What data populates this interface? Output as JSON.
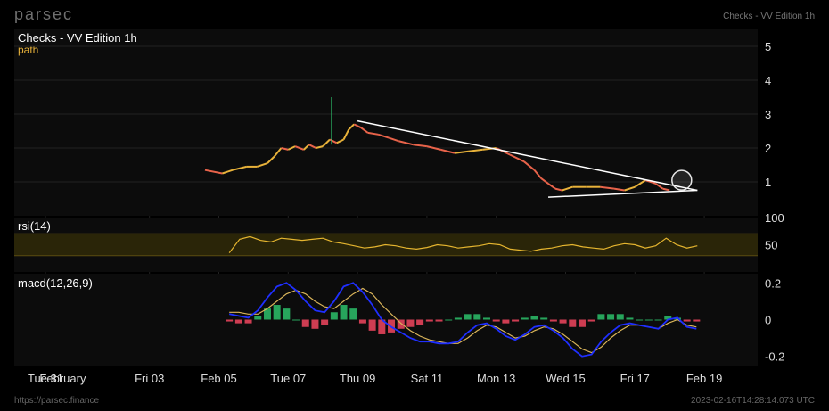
{
  "brand": "parsec",
  "header_right": "Checks - VV Edition 1h",
  "footer": {
    "url": "https://parsec.finance",
    "timestamp": "2023-02-16T14:28:14.073 UTC"
  },
  "colors": {
    "background": "#000000",
    "panel": "#0c0c0c",
    "grid": "#222222",
    "price_up": "#e8b23a",
    "price_down": "#e8634a",
    "wick_green": "#2ecc71",
    "rsi_line": "#e5b52f",
    "rsi_band": "#2a2508",
    "macd_line": "#1f2fff",
    "signal_line": "#d9b45a",
    "hist_pos": "#2ecc71",
    "hist_neg": "#ff4a64",
    "trendline": "#ffffff"
  },
  "chart_data": [
    {
      "type": "line",
      "title": "Checks - VV Edition 1h",
      "series_label": "path",
      "ylim": [
        0,
        5.5
      ],
      "yticks": [
        "5",
        "4",
        "3",
        "2",
        "1"
      ],
      "x_ticks": [
        "Tue 31",
        "February",
        "Fri 03",
        "Feb 05",
        "Tue 07",
        "Thu 09",
        "Sat 11",
        "Mon 13",
        "Wed 15",
        "Fri 17",
        "Feb 19"
      ],
      "x_tick_days": [
        0,
        0.5,
        3,
        5,
        7,
        9,
        11,
        13,
        15,
        17,
        19
      ],
      "price_points": [
        [
          4.6,
          1.35
        ],
        [
          5.1,
          1.25
        ],
        [
          5.4,
          1.35
        ],
        [
          5.8,
          1.45
        ],
        [
          6.1,
          1.45
        ],
        [
          6.4,
          1.55
        ],
        [
          6.6,
          1.75
        ],
        [
          6.8,
          2.0
        ],
        [
          7.0,
          1.95
        ],
        [
          7.2,
          2.05
        ],
        [
          7.45,
          1.95
        ],
        [
          7.6,
          2.1
        ],
        [
          7.8,
          2.0
        ],
        [
          8.0,
          2.05
        ],
        [
          8.2,
          2.25
        ],
        [
          8.4,
          2.15
        ],
        [
          8.6,
          2.25
        ],
        [
          8.75,
          2.55
        ],
        [
          8.9,
          2.7
        ],
        [
          9.1,
          2.6
        ],
        [
          9.3,
          2.45
        ],
        [
          9.6,
          2.4
        ],
        [
          9.9,
          2.3
        ],
        [
          10.2,
          2.2
        ],
        [
          10.6,
          2.1
        ],
        [
          11.0,
          2.05
        ],
        [
          11.4,
          1.95
        ],
        [
          11.8,
          1.85
        ],
        [
          12.2,
          1.9
        ],
        [
          12.6,
          1.95
        ],
        [
          13.0,
          2.0
        ],
        [
          13.4,
          1.8
        ],
        [
          13.8,
          1.6
        ],
        [
          14.1,
          1.35
        ],
        [
          14.3,
          1.1
        ],
        [
          14.5,
          0.95
        ],
        [
          14.7,
          0.8
        ],
        [
          14.9,
          0.75
        ],
        [
          15.2,
          0.85
        ],
        [
          15.6,
          0.85
        ],
        [
          16.0,
          0.85
        ],
        [
          16.4,
          0.8
        ],
        [
          16.7,
          0.75
        ],
        [
          17.0,
          0.85
        ],
        [
          17.3,
          1.05
        ],
        [
          17.6,
          0.95
        ],
        [
          17.8,
          0.8
        ],
        [
          18.0,
          0.75
        ]
      ],
      "wick_spike": {
        "x": 8.25,
        "high": 3.5,
        "low": 2.1
      },
      "trendlines": [
        {
          "from": [
            9.0,
            2.8
          ],
          "to": [
            18.8,
            0.75
          ]
        },
        {
          "from": [
            14.5,
            0.55
          ],
          "to": [
            18.8,
            0.75
          ]
        }
      ],
      "marker_circle": {
        "x": 18.35,
        "y": 1.05
      }
    },
    {
      "type": "line",
      "title": "rsi(14)",
      "ylim": [
        0,
        100
      ],
      "yticks": [
        "100",
        "50"
      ],
      "band": [
        30,
        70
      ],
      "values_start": 5.3,
      "values_step": 0.3,
      "values": [
        35,
        60,
        65,
        58,
        55,
        62,
        60,
        58,
        60,
        62,
        55,
        52,
        48,
        44,
        46,
        50,
        48,
        44,
        42,
        45,
        50,
        48,
        44,
        46,
        48,
        52,
        50,
        42,
        40,
        38,
        42,
        44,
        48,
        50,
        46,
        44,
        42,
        48,
        52,
        50,
        44,
        48,
        62,
        50,
        44,
        48
      ]
    },
    {
      "type": "bar",
      "title": "macd(12,26,9)",
      "ylim": [
        -0.25,
        0.25
      ],
      "yticks": [
        "0.2",
        "0",
        "-0.2"
      ],
      "x_start": 5.3,
      "x_step": 0.275,
      "macd": [
        0.03,
        0.02,
        0.01,
        0.05,
        0.12,
        0.18,
        0.2,
        0.16,
        0.1,
        0.05,
        0.04,
        0.1,
        0.18,
        0.2,
        0.15,
        0.08,
        0.0,
        -0.04,
        -0.07,
        -0.1,
        -0.12,
        -0.12,
        -0.13,
        -0.13,
        -0.12,
        -0.07,
        -0.03,
        -0.02,
        -0.05,
        -0.09,
        -0.11,
        -0.08,
        -0.04,
        -0.03,
        -0.06,
        -0.1,
        -0.16,
        -0.2,
        -0.19,
        -0.12,
        -0.07,
        -0.03,
        -0.02,
        -0.03,
        -0.04,
        -0.05,
        0.0,
        0.01,
        -0.04,
        -0.05
      ],
      "signal": [
        0.04,
        0.04,
        0.03,
        0.03,
        0.06,
        0.1,
        0.14,
        0.16,
        0.14,
        0.1,
        0.07,
        0.06,
        0.1,
        0.14,
        0.17,
        0.14,
        0.08,
        0.03,
        -0.02,
        -0.06,
        -0.09,
        -0.11,
        -0.12,
        -0.13,
        -0.13,
        -0.1,
        -0.06,
        -0.03,
        -0.04,
        -0.07,
        -0.1,
        -0.09,
        -0.06,
        -0.04,
        -0.05,
        -0.08,
        -0.12,
        -0.16,
        -0.18,
        -0.15,
        -0.1,
        -0.06,
        -0.03,
        -0.03,
        -0.04,
        -0.05,
        -0.02,
        -0.0,
        -0.03,
        -0.04
      ]
    }
  ]
}
